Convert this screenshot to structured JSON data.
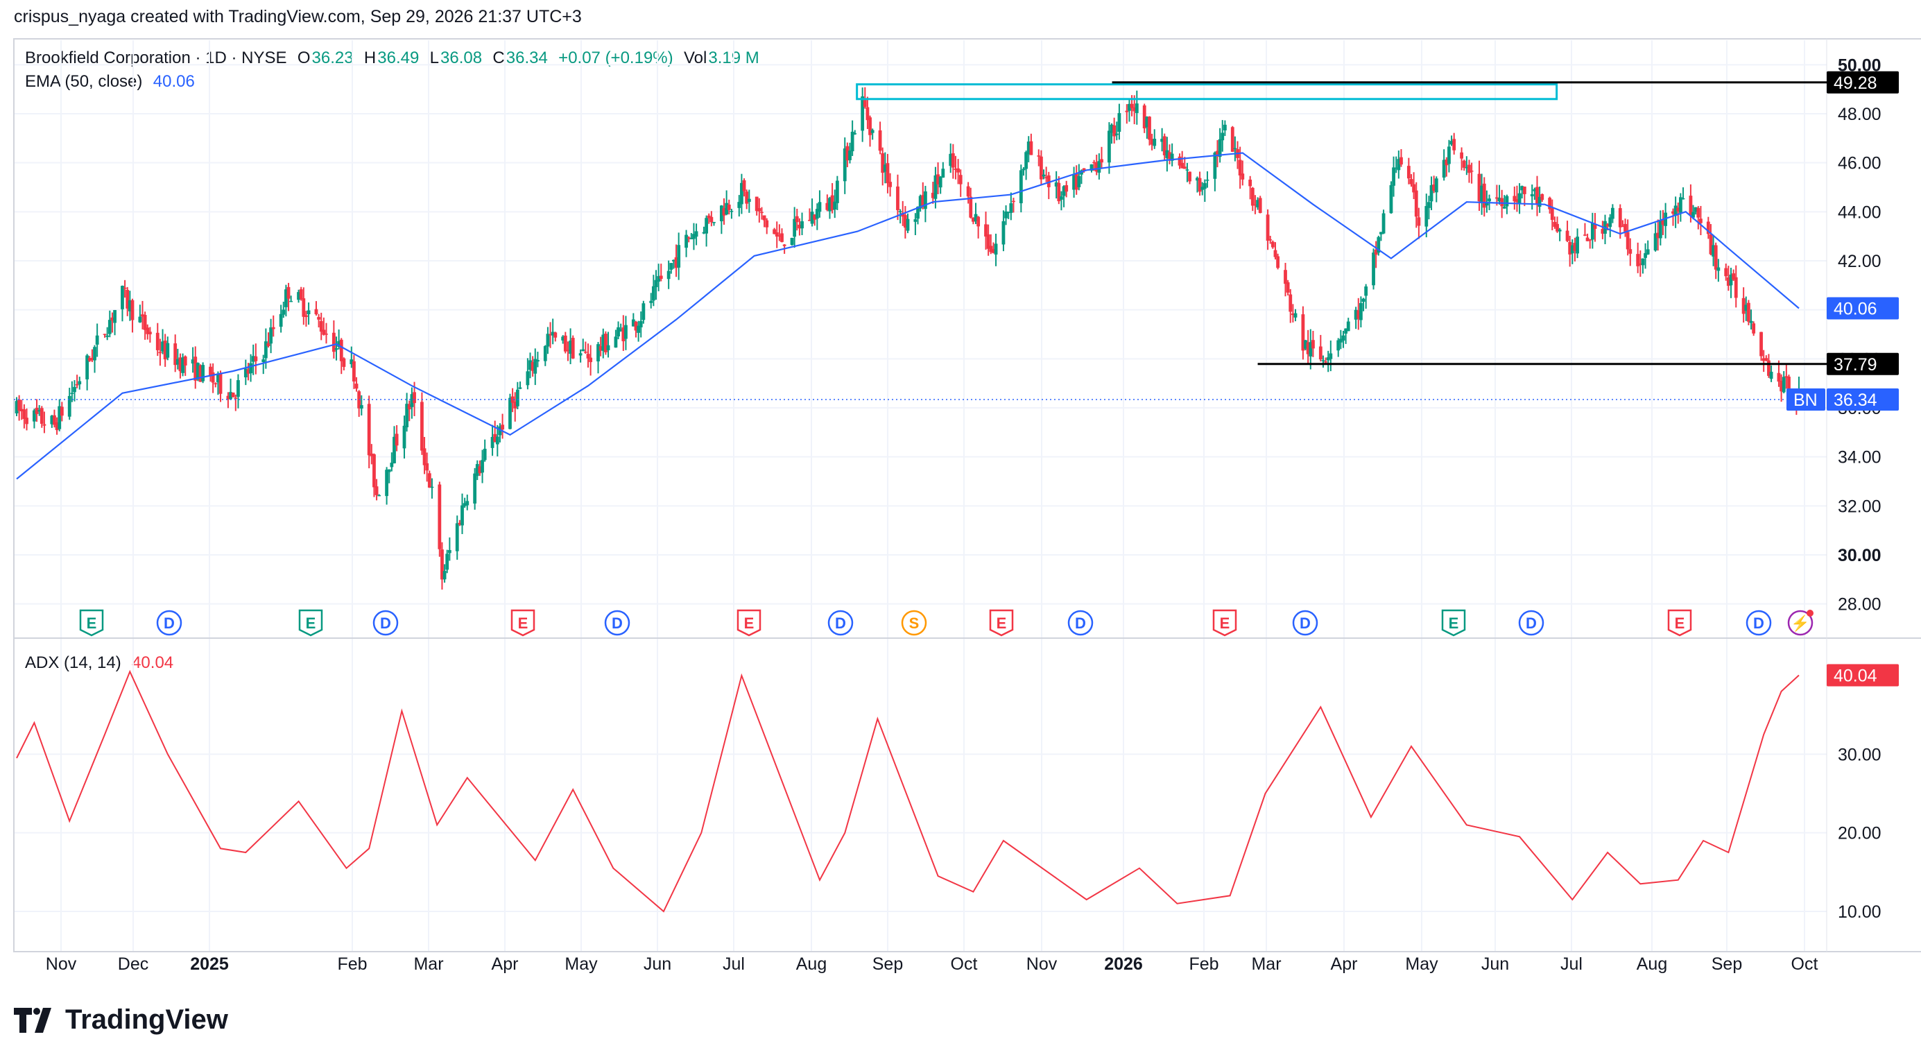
{
  "header": {
    "attribution": "crispus_nyaga created with TradingView.com, Sep 29, 2026 21:37 UTC+3"
  },
  "legend": {
    "symbol": "Brookfield Corporation · 1D · NYSE",
    "o_label": "O",
    "o_value": "36.23",
    "h_label": "H",
    "h_value": "36.49",
    "l_label": "L",
    "l_value": "36.08",
    "c_label": "C",
    "c_value": "36.34",
    "change": "+0.07 (+0.19%)",
    "vol_label": "Vol",
    "vol_value": "3.19 M",
    "ema_label": "EMA (50, close)",
    "ema_value": "40.06",
    "adx_label": "ADX (14, 14)",
    "adx_value": "40.04"
  },
  "colors": {
    "up": "#089981",
    "down": "#f23645",
    "ema": "#2962ff",
    "adx": "#f23645",
    "resistance_box": "#00bcd4",
    "level_line": "#000000",
    "grid": "#f0f3fa"
  },
  "price_axis": {
    "ticks": [
      "28.00",
      "30.00",
      "32.00",
      "34.00",
      "36.00",
      "38.00",
      "40.00",
      "42.00",
      "44.00",
      "46.00",
      "48.00",
      "50.00"
    ],
    "badges": {
      "resistance": "49.28",
      "support": "37.79",
      "ema": "40.06",
      "symbol": "BN",
      "last": "36.34"
    }
  },
  "adx_axis": {
    "ticks": [
      "10.00",
      "20.00",
      "30.00"
    ],
    "badge": "40.04"
  },
  "time_axis": [
    "Nov",
    "Dec",
    "2025",
    "Feb",
    "Mar",
    "Apr",
    "May",
    "Jun",
    "Jul",
    "Aug",
    "Sep",
    "Oct",
    "Nov",
    "2026",
    "Feb",
    "Mar",
    "Apr",
    "May",
    "Jun",
    "Jul",
    "Aug",
    "Sep",
    "Oct"
  ],
  "event_markers": [
    "E",
    "D",
    "E",
    "D",
    "E",
    "D",
    "E",
    "D",
    "S",
    "E",
    "D",
    "E",
    "D",
    "E",
    "D",
    "E",
    "D",
    "⚡"
  ],
  "footer": {
    "brand": "TradingView"
  },
  "chart_data": [
    {
      "type": "candlestick",
      "title": "Brookfield Corporation · 1D · NYSE",
      "x_range": [
        "2024-10-21",
        "2026-09-29"
      ],
      "ylim": [
        27,
        51
      ],
      "key_levels": [
        49.28,
        37.79
      ],
      "resistance_zone": [
        48.6,
        49.2
      ],
      "last_close": 36.34,
      "close_path": [
        {
          "x": "2024-10-21",
          "y": 35.9
        },
        {
          "x": "2024-11-05",
          "y": 35.3
        },
        {
          "x": "2024-11-18",
          "y": 37.8
        },
        {
          "x": "2024-12-02",
          "y": 40.6
        },
        {
          "x": "2024-12-16",
          "y": 38.5
        },
        {
          "x": "2024-12-30",
          "y": 37.6
        },
        {
          "x": "2025-01-15",
          "y": 36.6
        },
        {
          "x": "2025-01-28",
          "y": 38.5
        },
        {
          "x": "2025-02-06",
          "y": 40.8
        },
        {
          "x": "2025-02-18",
          "y": 39.5
        },
        {
          "x": "2025-03-04",
          "y": 37.5
        },
        {
          "x": "2025-03-13",
          "y": 32.5
        },
        {
          "x": "2025-03-27",
          "y": 36.4
        },
        {
          "x": "2025-04-04",
          "y": 32.5
        },
        {
          "x": "2025-04-08",
          "y": 29.1
        },
        {
          "x": "2025-04-18",
          "y": 32.6
        },
        {
          "x": "2025-05-05",
          "y": 36.0
        },
        {
          "x": "2025-05-20",
          "y": 38.9
        },
        {
          "x": "2025-06-05",
          "y": 38.1
        },
        {
          "x": "2025-06-25",
          "y": 39.6
        },
        {
          "x": "2025-07-15",
          "y": 43.0
        },
        {
          "x": "2025-08-05",
          "y": 44.8
        },
        {
          "x": "2025-08-20",
          "y": 42.8
        },
        {
          "x": "2025-09-10",
          "y": 44.5
        },
        {
          "x": "2025-09-22",
          "y": 48.5
        },
        {
          "x": "2025-10-03",
          "y": 45.0
        },
        {
          "x": "2025-10-10",
          "y": 43.5
        },
        {
          "x": "2025-10-27",
          "y": 46.0
        },
        {
          "x": "2025-11-07",
          "y": 43.5
        },
        {
          "x": "2025-11-13",
          "y": 42.4
        },
        {
          "x": "2025-11-27",
          "y": 46.5
        },
        {
          "x": "2025-12-10",
          "y": 44.5
        },
        {
          "x": "2025-12-26",
          "y": 46.3
        },
        {
          "x": "2026-01-06",
          "y": 48.6
        },
        {
          "x": "2026-01-20",
          "y": 46.4
        },
        {
          "x": "2026-02-03",
          "y": 45.0
        },
        {
          "x": "2026-02-13",
          "y": 47.2
        },
        {
          "x": "2026-02-27",
          "y": 44.0
        },
        {
          "x": "2026-03-16",
          "y": 38.6
        },
        {
          "x": "2026-03-23",
          "y": 38.0
        },
        {
          "x": "2026-04-09",
          "y": 40.2
        },
        {
          "x": "2026-04-23",
          "y": 46.4
        },
        {
          "x": "2026-05-01",
          "y": 43.7
        },
        {
          "x": "2026-05-14",
          "y": 46.5
        },
        {
          "x": "2026-05-27",
          "y": 44.5
        },
        {
          "x": "2026-06-15",
          "y": 44.8
        },
        {
          "x": "2026-07-01",
          "y": 42.4
        },
        {
          "x": "2026-07-17",
          "y": 43.9
        },
        {
          "x": "2026-07-28",
          "y": 41.8
        },
        {
          "x": "2026-08-11",
          "y": 44.5
        },
        {
          "x": "2026-08-19",
          "y": 44.0
        },
        {
          "x": "2026-08-28",
          "y": 41.8
        },
        {
          "x": "2026-09-09",
          "y": 39.9
        },
        {
          "x": "2026-09-18",
          "y": 37.4
        },
        {
          "x": "2026-09-29",
          "y": 36.34
        }
      ]
    },
    {
      "type": "line",
      "series": [
        {
          "name": "EMA (50, close)",
          "last": 40.06
        }
      ],
      "x_range": [
        "2024-10-21",
        "2026-09-29"
      ],
      "points": [
        {
          "x": "2024-10-21",
          "y": 33.1
        },
        {
          "x": "2024-12-02",
          "y": 36.6
        },
        {
          "x": "2025-01-15",
          "y": 37.5
        },
        {
          "x": "2025-02-25",
          "y": 38.6
        },
        {
          "x": "2025-03-27",
          "y": 36.9
        },
        {
          "x": "2025-05-05",
          "y": 34.9
        },
        {
          "x": "2025-06-05",
          "y": 36.9
        },
        {
          "x": "2025-07-10",
          "y": 39.6
        },
        {
          "x": "2025-08-10",
          "y": 42.2
        },
        {
          "x": "2025-09-20",
          "y": 43.2
        },
        {
          "x": "2025-10-20",
          "y": 44.4
        },
        {
          "x": "2025-11-20",
          "y": 44.7
        },
        {
          "x": "2025-12-20",
          "y": 45.7
        },
        {
          "x": "2026-01-20",
          "y": 46.1
        },
        {
          "x": "2026-02-20",
          "y": 46.4
        },
        {
          "x": "2026-03-20",
          "y": 44.3
        },
        {
          "x": "2026-04-20",
          "y": 42.1
        },
        {
          "x": "2026-05-20",
          "y": 44.4
        },
        {
          "x": "2026-06-20",
          "y": 44.3
        },
        {
          "x": "2026-07-20",
          "y": 43.1
        },
        {
          "x": "2026-08-15",
          "y": 44.0
        },
        {
          "x": "2026-09-01",
          "y": 42.5
        },
        {
          "x": "2026-09-29",
          "y": 40.06
        }
      ]
    },
    {
      "type": "line",
      "series": [
        {
          "name": "ADX (14, 14)",
          "last": 40.04
        }
      ],
      "ylim": [
        7,
        43
      ],
      "x_range": [
        "2024-10-21",
        "2026-09-29"
      ],
      "points": [
        {
          "x": "2024-10-21",
          "y": 29.5
        },
        {
          "x": "2024-10-28",
          "y": 34.0
        },
        {
          "x": "2024-11-11",
          "y": 21.5
        },
        {
          "x": "2024-11-25",
          "y": 32.5
        },
        {
          "x": "2024-12-05",
          "y": 40.5
        },
        {
          "x": "2024-12-20",
          "y": 30.0
        },
        {
          "x": "2025-01-10",
          "y": 18.0
        },
        {
          "x": "2025-01-20",
          "y": 17.5
        },
        {
          "x": "2025-02-10",
          "y": 24.0
        },
        {
          "x": "2025-03-01",
          "y": 15.5
        },
        {
          "x": "2025-03-10",
          "y": 18.0
        },
        {
          "x": "2025-03-23",
          "y": 35.5
        },
        {
          "x": "2025-04-06",
          "y": 21.0
        },
        {
          "x": "2025-04-18",
          "y": 27.0
        },
        {
          "x": "2025-05-15",
          "y": 16.5
        },
        {
          "x": "2025-05-30",
          "y": 25.5
        },
        {
          "x": "2025-06-15",
          "y": 15.5
        },
        {
          "x": "2025-07-05",
          "y": 10.0
        },
        {
          "x": "2025-07-20",
          "y": 20.0
        },
        {
          "x": "2025-08-01",
          "y": 35.0
        },
        {
          "x": "2025-08-05",
          "y": 40.0
        },
        {
          "x": "2025-09-05",
          "y": 14.0
        },
        {
          "x": "2025-09-15",
          "y": 20.0
        },
        {
          "x": "2025-09-28",
          "y": 34.5
        },
        {
          "x": "2025-10-22",
          "y": 14.5
        },
        {
          "x": "2025-11-05",
          "y": 12.5
        },
        {
          "x": "2025-11-17",
          "y": 19.0
        },
        {
          "x": "2025-12-20",
          "y": 11.5
        },
        {
          "x": "2026-01-10",
          "y": 15.5
        },
        {
          "x": "2026-01-25",
          "y": 11.0
        },
        {
          "x": "2026-02-15",
          "y": 12.0
        },
        {
          "x": "2026-03-01",
          "y": 25.0
        },
        {
          "x": "2026-03-23",
          "y": 36.0
        },
        {
          "x": "2026-04-12",
          "y": 22.0
        },
        {
          "x": "2026-04-28",
          "y": 31.0
        },
        {
          "x": "2026-05-20",
          "y": 21.0
        },
        {
          "x": "2026-06-10",
          "y": 19.5
        },
        {
          "x": "2026-07-01",
          "y": 11.5
        },
        {
          "x": "2026-07-15",
          "y": 17.5
        },
        {
          "x": "2026-07-28",
          "y": 13.5
        },
        {
          "x": "2026-08-12",
          "y": 14.0
        },
        {
          "x": "2026-08-22",
          "y": 19.0
        },
        {
          "x": "2026-09-01",
          "y": 17.5
        },
        {
          "x": "2026-09-15",
          "y": 32.5
        },
        {
          "x": "2026-09-22",
          "y": 38.0
        },
        {
          "x": "2026-09-29",
          "y": 40.04
        }
      ]
    }
  ]
}
